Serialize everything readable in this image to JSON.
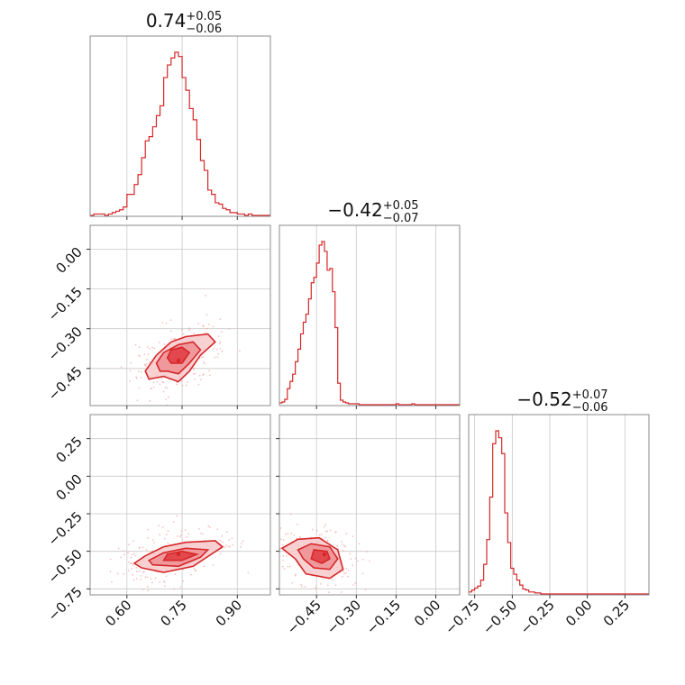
{
  "colors": {
    "accent": "#d62728",
    "fill_outer": "#f7c9cb",
    "fill_mid": "#ef8f93",
    "fill_inner": "#df3a40",
    "scatter": "#f4a6a9"
  },
  "chart_data": {
    "type": "corner",
    "grid": true,
    "parameters": [
      {
        "title_main": "0.74",
        "title_sup": "+0.05",
        "title_sub": "−0.06",
        "range": [
          0.5,
          0.99
        ],
        "ticks": [
          0.6,
          0.75,
          0.9
        ],
        "tick_labels": [
          "0.60",
          "0.75",
          "0.90"
        ]
      },
      {
        "title_main": "−0.42",
        "title_sup": "+0.05",
        "title_sub": "−0.07",
        "range": [
          -0.59,
          0.09
        ],
        "ticks": [
          -0.45,
          -0.3,
          -0.15,
          0.0
        ],
        "tick_labels": [
          "−0.45",
          "−0.30",
          "−0.15",
          "0.00"
        ]
      },
      {
        "title_main": "−0.52",
        "title_sup": "+0.07",
        "title_sub": "−0.06",
        "range": [
          -0.79,
          0.41
        ],
        "ticks": [
          -0.75,
          -0.5,
          -0.25,
          0.0,
          0.25
        ],
        "tick_labels": [
          "−0.75",
          "−0.50",
          "−0.25",
          "0.00",
          "0.25"
        ]
      }
    ],
    "histograms": [
      {
        "param": 0,
        "bins": [
          0.5,
          0.51,
          0.52,
          0.53,
          0.54,
          0.55,
          0.56,
          0.57,
          0.58,
          0.59,
          0.6,
          0.61,
          0.62,
          0.63,
          0.64,
          0.65,
          0.66,
          0.67,
          0.68,
          0.69,
          0.7,
          0.71,
          0.72,
          0.73,
          0.74,
          0.75,
          0.76,
          0.77,
          0.78,
          0.79,
          0.8,
          0.81,
          0.82,
          0.83,
          0.84,
          0.85,
          0.86,
          0.87,
          0.88,
          0.89,
          0.9,
          0.91,
          0.92,
          0.93,
          0.94,
          0.95,
          0.96,
          0.97,
          0.98,
          0.99
        ],
        "counts": [
          0,
          1,
          1,
          1,
          0,
          1,
          2,
          3,
          4,
          6,
          15,
          15,
          22,
          29,
          41,
          53,
          56,
          63,
          71,
          78,
          98,
          107,
          112,
          116,
          113,
          98,
          89,
          76,
          68,
          54,
          39,
          32,
          18,
          15,
          9,
          8,
          5,
          4,
          2,
          2,
          1,
          1,
          0,
          1,
          0,
          0,
          0,
          0,
          0
        ]
      },
      {
        "param": 1,
        "bins": [
          -0.59,
          -0.58,
          -0.57,
          -0.56,
          -0.55,
          -0.54,
          -0.53,
          -0.52,
          -0.51,
          -0.5,
          -0.49,
          -0.48,
          -0.47,
          -0.46,
          -0.45,
          -0.44,
          -0.43,
          -0.42,
          -0.41,
          -0.4,
          -0.39,
          -0.38,
          -0.37,
          -0.36,
          -0.35,
          -0.34,
          -0.33,
          -0.32,
          -0.31,
          -0.3,
          -0.29,
          -0.28,
          -0.27,
          -0.26,
          -0.25,
          -0.24,
          -0.23,
          -0.22,
          -0.21,
          -0.2,
          -0.19,
          -0.18,
          -0.17,
          -0.16,
          -0.15,
          -0.14,
          -0.13,
          -0.12,
          -0.11,
          -0.1,
          -0.09,
          -0.08,
          -0.07,
          -0.06,
          -0.05,
          -0.04,
          -0.03,
          -0.02,
          -0.01,
          0.0,
          0.01,
          0.02,
          0.03,
          0.04,
          0.05,
          0.06,
          0.07,
          0.08,
          0.09
        ],
        "counts": [
          2,
          3,
          6,
          18,
          26,
          34,
          48,
          62,
          79,
          92,
          101,
          118,
          136,
          142,
          158,
          178,
          182,
          171,
          150,
          152,
          126,
          86,
          24,
          5,
          3,
          2,
          1,
          1,
          1,
          1,
          0,
          0,
          0,
          0,
          0,
          0,
          0,
          0,
          0,
          0,
          0,
          0,
          0,
          0,
          1,
          0,
          0,
          0,
          0,
          0,
          1,
          0,
          0,
          0,
          0,
          0,
          0,
          0,
          0,
          0,
          0,
          0,
          0,
          0,
          0,
          0,
          0,
          0
        ]
      },
      {
        "param": 2,
        "bins": [
          -0.79,
          -0.77,
          -0.75,
          -0.73,
          -0.71,
          -0.69,
          -0.67,
          -0.65,
          -0.63,
          -0.61,
          -0.59,
          -0.57,
          -0.55,
          -0.53,
          -0.51,
          -0.49,
          -0.47,
          -0.45,
          -0.43,
          -0.41,
          -0.39,
          -0.37,
          -0.35,
          -0.33,
          -0.31,
          -0.29,
          -0.27,
          -0.25,
          -0.23,
          -0.21,
          -0.19,
          -0.17,
          -0.15,
          -0.13,
          -0.11,
          -0.09,
          -0.07,
          -0.05,
          -0.03,
          -0.01,
          0.01,
          0.03,
          0.05,
          0.07,
          0.09,
          0.11,
          0.13,
          0.15,
          0.17,
          0.19,
          0.21,
          0.23,
          0.25,
          0.27,
          0.29,
          0.31,
          0.33,
          0.35,
          0.37,
          0.39,
          0.41
        ],
        "counts": [
          2,
          4,
          6,
          8,
          14,
          30,
          55,
          98,
          152,
          165,
          158,
          142,
          82,
          52,
          26,
          20,
          14,
          9,
          5,
          4,
          2,
          2,
          1,
          1,
          0,
          0,
          0,
          0,
          0,
          0,
          0,
          0,
          0,
          0,
          0,
          0,
          0,
          0,
          0,
          0,
          0,
          0,
          0,
          0,
          0,
          0,
          0,
          0,
          0,
          0,
          0,
          0,
          0,
          0,
          0,
          0,
          0,
          0,
          0,
          0
        ]
      }
    ],
    "pairs": [
      {
        "x_param": 0,
        "y_param": 1,
        "center": [
          0.74,
          -0.42
        ],
        "levels": [
          {
            "level": "outer",
            "points": [
              [
                0.7,
                -0.48
              ],
              [
                0.74,
                -0.5
              ],
              [
                0.77,
                -0.46
              ],
              [
                0.8,
                -0.4
              ],
              [
                0.84,
                -0.35
              ],
              [
                0.82,
                -0.32
              ],
              [
                0.76,
                -0.33
              ],
              [
                0.72,
                -0.35
              ],
              [
                0.68,
                -0.4
              ],
              [
                0.65,
                -0.46
              ],
              [
                0.66,
                -0.49
              ]
            ]
          },
          {
            "level": "mid",
            "points": [
              [
                0.71,
                -0.46
              ],
              [
                0.74,
                -0.47
              ],
              [
                0.77,
                -0.43
              ],
              [
                0.8,
                -0.38
              ],
              [
                0.78,
                -0.35
              ],
              [
                0.74,
                -0.36
              ],
              [
                0.7,
                -0.39
              ],
              [
                0.68,
                -0.43
              ],
              [
                0.69,
                -0.46
              ]
            ]
          },
          {
            "level": "inner",
            "points": [
              [
                0.72,
                -0.43
              ],
              [
                0.75,
                -0.43
              ],
              [
                0.77,
                -0.39
              ],
              [
                0.75,
                -0.37
              ],
              [
                0.72,
                -0.38
              ],
              [
                0.71,
                -0.41
              ]
            ]
          }
        ]
      },
      {
        "x_param": 0,
        "y_param": 2,
        "center": [
          0.74,
          -0.52
        ],
        "levels": [
          {
            "level": "outer",
            "points": [
              [
                0.64,
                -0.61
              ],
              [
                0.7,
                -0.64
              ],
              [
                0.78,
                -0.6
              ],
              [
                0.86,
                -0.47
              ],
              [
                0.84,
                -0.43
              ],
              [
                0.76,
                -0.44
              ],
              [
                0.7,
                -0.47
              ],
              [
                0.65,
                -0.53
              ],
              [
                0.62,
                -0.58
              ]
            ]
          },
          {
            "level": "mid",
            "points": [
              [
                0.67,
                -0.59
              ],
              [
                0.74,
                -0.6
              ],
              [
                0.8,
                -0.54
              ],
              [
                0.82,
                -0.49
              ],
              [
                0.76,
                -0.48
              ],
              [
                0.7,
                -0.51
              ],
              [
                0.66,
                -0.56
              ]
            ]
          },
          {
            "level": "inner",
            "points": [
              [
                0.7,
                -0.56
              ],
              [
                0.75,
                -0.56
              ],
              [
                0.79,
                -0.52
              ],
              [
                0.75,
                -0.5
              ],
              [
                0.71,
                -0.52
              ]
            ]
          }
        ]
      },
      {
        "x_param": 1,
        "y_param": 2,
        "center": [
          -0.42,
          -0.52
        ],
        "levels": [
          {
            "level": "outer",
            "points": [
              [
                -0.53,
                -0.55
              ],
              [
                -0.49,
                -0.65
              ],
              [
                -0.4,
                -0.68
              ],
              [
                -0.35,
                -0.62
              ],
              [
                -0.37,
                -0.49
              ],
              [
                -0.44,
                -0.41
              ],
              [
                -0.52,
                -0.42
              ],
              [
                -0.58,
                -0.48
              ]
            ]
          },
          {
            "level": "mid",
            "points": [
              [
                -0.5,
                -0.55
              ],
              [
                -0.46,
                -0.61
              ],
              [
                -0.4,
                -0.62
              ],
              [
                -0.37,
                -0.55
              ],
              [
                -0.4,
                -0.47
              ],
              [
                -0.47,
                -0.45
              ],
              [
                -0.52,
                -0.49
              ]
            ]
          },
          {
            "level": "inner",
            "points": [
              [
                -0.47,
                -0.55
              ],
              [
                -0.43,
                -0.58
              ],
              [
                -0.4,
                -0.55
              ],
              [
                -0.41,
                -0.5
              ],
              [
                -0.46,
                -0.49
              ]
            ]
          }
        ]
      }
    ]
  }
}
